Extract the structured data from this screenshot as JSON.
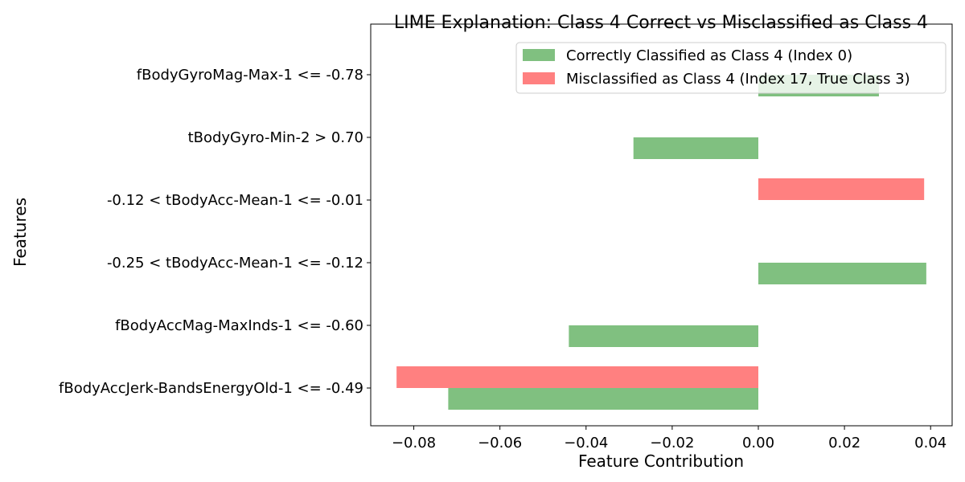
{
  "chart_data": {
    "type": "bar",
    "orientation": "horizontal",
    "title": "LIME Explanation: Class 4 Correct vs Misclassified as Class 4",
    "xlabel": "Feature Contribution",
    "ylabel": "Features",
    "xlim": [
      -0.09,
      0.045
    ],
    "x_ticks": [
      -0.08,
      -0.06,
      -0.04,
      -0.02,
      0.0,
      0.02,
      0.04
    ],
    "x_tick_labels": [
      "−0.08",
      "−0.06",
      "−0.04",
      "−0.02",
      "0.00",
      "0.02",
      "0.04"
    ],
    "grid": false,
    "legend_position": "top-right",
    "categories": [
      "fBodyGyroMag-Max-1 <= -0.78",
      "tBodyGyro-Min-2 > 0.70",
      "-0.12 < tBodyAcc-Mean-1 <= -0.01",
      "-0.25 < tBodyAcc-Mean-1 <= -0.12",
      "fBodyAccMag-MaxInds-1 <= -0.60",
      "fBodyAccJerk-BandsEnergyOld-1 <= -0.49"
    ],
    "series": [
      {
        "name": "Correctly Classified as Class 4 (Index 0)",
        "color": "#80c080",
        "values": [
          0.028,
          -0.029,
          null,
          0.039,
          -0.044,
          -0.072
        ]
      },
      {
        "name": "Misclassified as Class 4 (Index 17, True Class 3)",
        "color": "#ff8080",
        "values": [
          null,
          null,
          0.0385,
          null,
          null,
          -0.084
        ]
      }
    ]
  }
}
